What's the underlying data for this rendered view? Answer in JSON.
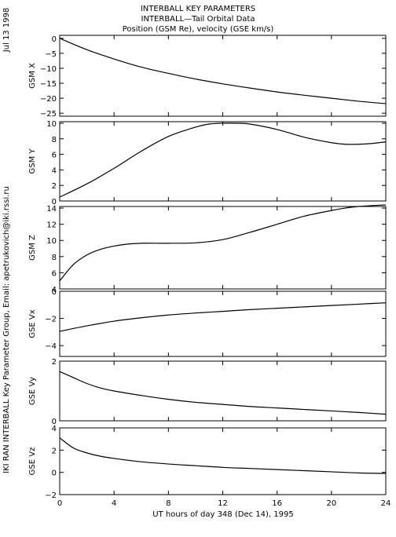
{
  "side_date": "Jul 13 1998",
  "side_credit": "IKI RAN INTERBALL Key Parameter Group, Email: apetrukovich@iki.rssi.ru",
  "header": {
    "line1": "INTERBALL KEY PARAMETERS",
    "line2": "INTERBALL—Tail Orbital Data",
    "line3": "Position (GSM Re), velocity (GSE km/s)"
  },
  "x_axis": {
    "label": "UT hours of day 348 (Dec 14), 1995",
    "range": [
      0,
      24
    ],
    "ticks": [
      0,
      4,
      8,
      12,
      16,
      20,
      24
    ]
  },
  "chart_data": [
    {
      "type": "line",
      "ylabel": "GSM X",
      "ylim": [
        -26,
        1
      ],
      "yticks": [
        0,
        -5,
        -10,
        -15,
        -20,
        -25
      ],
      "series": [
        {
          "x": [
            0,
            2,
            4,
            6,
            8,
            10,
            12,
            14,
            16,
            18,
            20,
            22,
            24
          ],
          "y": [
            0,
            -3.8,
            -6.9,
            -9.6,
            -11.7,
            -13.6,
            -15.2,
            -16.6,
            -17.9,
            -19.0,
            -20.0,
            -21.0,
            -21.8
          ]
        }
      ]
    },
    {
      "type": "line",
      "ylabel": "GSM Y",
      "ylim": [
        0,
        10.2
      ],
      "yticks": [
        0,
        2,
        4,
        6,
        8,
        10
      ],
      "series": [
        {
          "x": [
            0,
            2,
            4,
            6,
            8,
            10,
            11,
            12,
            13,
            14,
            16,
            18,
            20,
            21,
            22,
            23,
            24
          ],
          "y": [
            0.5,
            2.2,
            4.2,
            6.4,
            8.3,
            9.5,
            9.9,
            10.0,
            10.0,
            9.9,
            9.2,
            8.2,
            7.5,
            7.3,
            7.3,
            7.4,
            7.6
          ]
        }
      ]
    },
    {
      "type": "line",
      "ylabel": "GSM Z",
      "ylim": [
        4,
        14.2
      ],
      "yticks": [
        4,
        6,
        8,
        10,
        12,
        14
      ],
      "series": [
        {
          "x": [
            0,
            1,
            2,
            3,
            4,
            5,
            6,
            8,
            10,
            12,
            14,
            16,
            18,
            20,
            21,
            22,
            24
          ],
          "y": [
            5.0,
            7.0,
            8.2,
            8.9,
            9.3,
            9.55,
            9.65,
            9.65,
            9.7,
            10.1,
            11.0,
            12.0,
            13.0,
            13.7,
            14.0,
            14.2,
            14.4
          ]
        }
      ]
    },
    {
      "type": "line",
      "ylabel": "GSE Vx",
      "ylim": [
        -4.8,
        0
      ],
      "yticks": [
        0,
        -2,
        -4
      ],
      "series": [
        {
          "x": [
            0,
            2,
            4,
            6,
            8,
            10,
            12,
            14,
            16,
            18,
            20,
            22,
            24
          ],
          "y": [
            -2.95,
            -2.55,
            -2.2,
            -1.95,
            -1.75,
            -1.6,
            -1.48,
            -1.35,
            -1.25,
            -1.15,
            -1.05,
            -0.95,
            -0.85
          ]
        }
      ]
    },
    {
      "type": "line",
      "ylabel": "GSE Vy",
      "ylim": [
        0,
        2
      ],
      "yticks": [
        0,
        2
      ],
      "series": [
        {
          "x": [
            0,
            1,
            2,
            3,
            4,
            6,
            8,
            10,
            12,
            14,
            16,
            18,
            20,
            22,
            24
          ],
          "y": [
            1.65,
            1.45,
            1.25,
            1.1,
            1.0,
            0.85,
            0.72,
            0.62,
            0.55,
            0.48,
            0.43,
            0.38,
            0.33,
            0.28,
            0.22
          ]
        }
      ]
    },
    {
      "type": "line",
      "ylabel": "GSE Vz",
      "ylim": [
        -2,
        4
      ],
      "yticks": [
        4,
        2,
        0,
        -2
      ],
      "series": [
        {
          "x": [
            0,
            1,
            2,
            3,
            4,
            6,
            8,
            10,
            12,
            14,
            16,
            18,
            20,
            22,
            24
          ],
          "y": [
            3.1,
            2.2,
            1.75,
            1.45,
            1.25,
            0.95,
            0.75,
            0.6,
            0.45,
            0.35,
            0.25,
            0.15,
            0.05,
            -0.05,
            -0.1
          ]
        }
      ]
    }
  ]
}
